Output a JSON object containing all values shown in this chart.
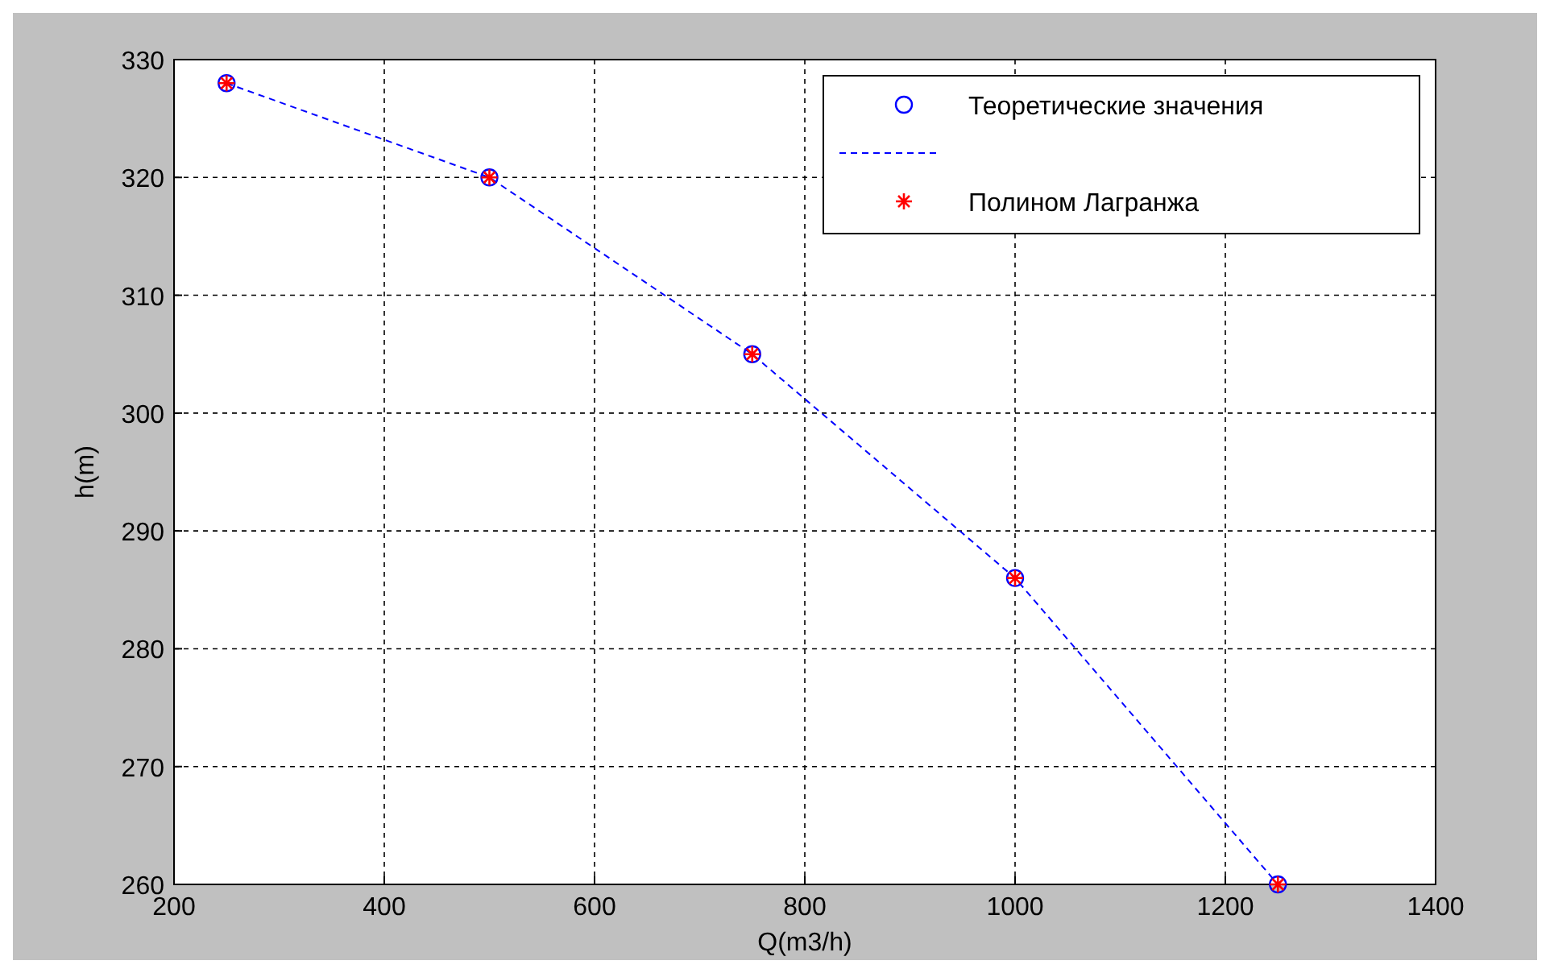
{
  "chart_data": {
    "type": "scatter",
    "xlabel": "Q(m3/h)",
    "ylabel": "h(m)",
    "x": [
      250,
      500,
      750,
      1000,
      1250
    ],
    "xlim": [
      200,
      1400
    ],
    "xticks": [
      200,
      400,
      600,
      800,
      1000,
      1200,
      1400
    ],
    "ylim": [
      260,
      330
    ],
    "yticks": [
      260,
      270,
      280,
      290,
      300,
      310,
      320,
      330
    ],
    "grid": true,
    "legend": "top right",
    "series": [
      {
        "name": "Теоретические значения",
        "marker": "circle",
        "color": "#0000ff",
        "values": [
          328,
          320,
          305,
          286,
          260
        ]
      },
      {
        "type": "line",
        "line_style": "dashed",
        "color": "#0000ff",
        "values": [
          328,
          320,
          305,
          286,
          260
        ]
      },
      {
        "name": "Полином Лагранжа",
        "marker": "cross",
        "color": "#ff0000",
        "values": [
          328,
          320,
          305,
          286,
          260
        ]
      }
    ]
  }
}
